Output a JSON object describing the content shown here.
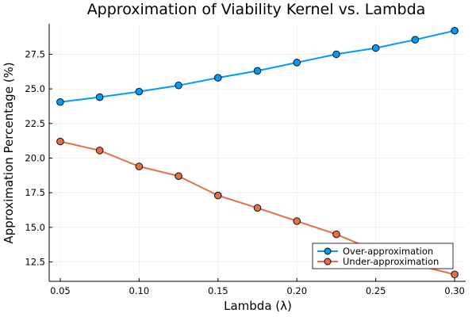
{
  "chart_data": {
    "type": "line",
    "title": "Approximation of Viability Kernel vs. Lambda",
    "xlabel": "Lambda (λ)",
    "ylabel": "Approximation Percentage (%)",
    "xlim": [
      0.043,
      0.307
    ],
    "ylim": [
      11.1,
      29.7
    ],
    "xticks": [
      0.05,
      0.1,
      0.15,
      0.2,
      0.25,
      0.3
    ],
    "xtick_labels": [
      "0.05",
      "0.10",
      "0.15",
      "0.20",
      "0.25",
      "0.30"
    ],
    "yticks": [
      12.5,
      15.0,
      17.5,
      20.0,
      22.5,
      25.0,
      27.5
    ],
    "ytick_labels": [
      "12.5",
      "15.0",
      "17.5",
      "20.0",
      "22.5",
      "25.0",
      "27.5"
    ],
    "grid": true,
    "legend_position": "bottom-right",
    "x": [
      0.05,
      0.075,
      0.1,
      0.125,
      0.15,
      0.175,
      0.2,
      0.225,
      0.25,
      0.275,
      0.3
    ],
    "series": [
      {
        "name": "Over-approximation",
        "color": "#009AFA",
        "values": [
          24.05,
          24.4,
          24.8,
          25.25,
          25.8,
          26.3,
          26.9,
          27.5,
          27.95,
          28.55,
          29.2
        ]
      },
      {
        "name": "Under-approximation",
        "color": "#E26F46",
        "values": [
          21.2,
          20.55,
          19.4,
          18.7,
          17.3,
          16.4,
          15.45,
          14.5,
          13.3,
          12.3,
          11.6
        ]
      }
    ]
  }
}
